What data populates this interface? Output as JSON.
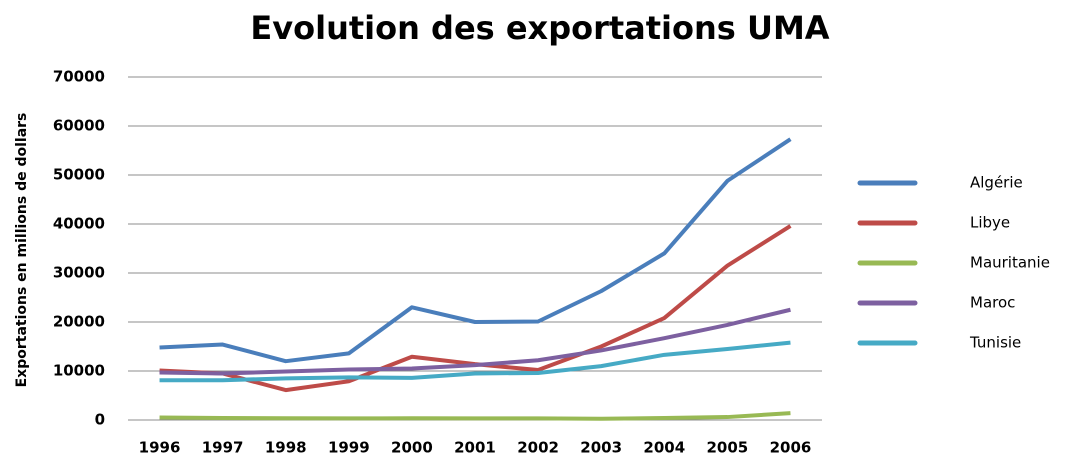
{
  "chart_data": {
    "type": "line",
    "title": "Evolution des exportations UMA",
    "y_label": "Exportations en millions de dollars",
    "categories": [
      "1996",
      "1997",
      "1998",
      "1999",
      "2000",
      "2001",
      "2002",
      "2003",
      "2004",
      "2005",
      "2006"
    ],
    "series": [
      {
        "name": "Algérie",
        "color": "#4a7ebb",
        "values": [
          14800,
          15400,
          12000,
          13600,
          23000,
          20000,
          20100,
          26300,
          34000,
          48800,
          57300
        ]
      },
      {
        "name": "Libye",
        "color": "#be4b48",
        "values": [
          10100,
          9500,
          6100,
          7900,
          12900,
          11400,
          10200,
          15000,
          20800,
          31500,
          39600
        ]
      },
      {
        "name": "Mauritanie",
        "color": "#98b954",
        "values": [
          500,
          400,
          350,
          330,
          350,
          330,
          330,
          250,
          400,
          600,
          1400
        ]
      },
      {
        "name": "Maroc",
        "color": "#7d60a0",
        "values": [
          9700,
          9500,
          9900,
          10300,
          10500,
          11200,
          12200,
          14200,
          16700,
          19400,
          22500
        ]
      },
      {
        "name": "Tunisie",
        "color": "#46aac5",
        "values": [
          8100,
          8100,
          8500,
          8700,
          8600,
          9500,
          9600,
          11000,
          13300,
          14500,
          15800
        ]
      }
    ],
    "ylim": [
      0,
      70000
    ],
    "yticks": [
      0,
      10000,
      20000,
      30000,
      40000,
      50000,
      60000,
      70000
    ],
    "grid": true,
    "legend": "right"
  }
}
